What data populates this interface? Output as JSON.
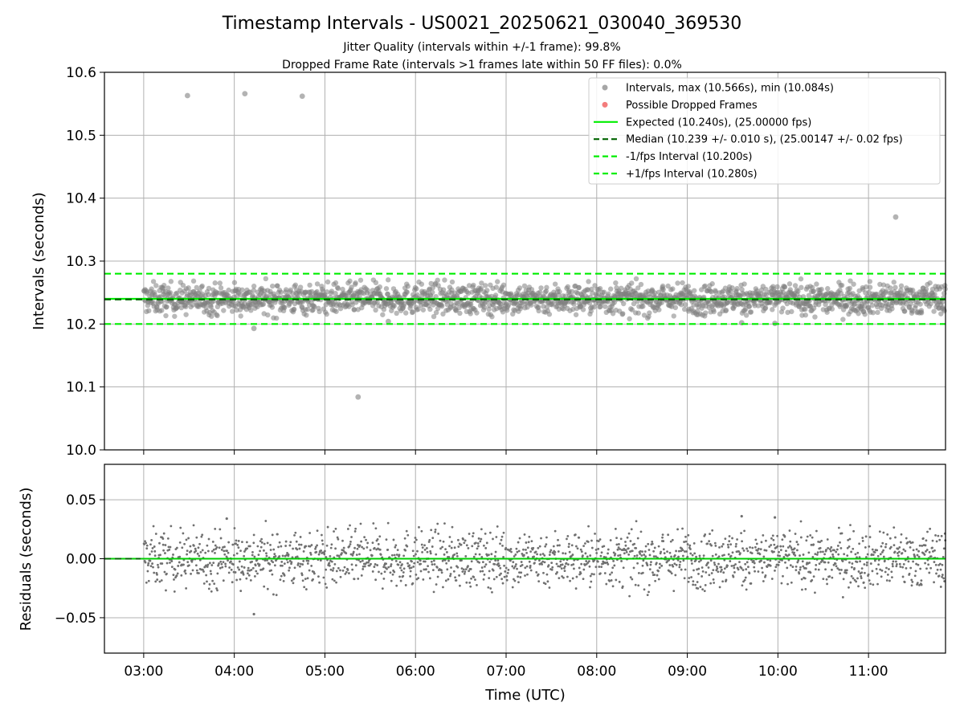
{
  "chart_data": [
    {
      "type": "scatter",
      "title": "Timestamp Intervals - US0021_20250621_030040_369530",
      "subtitle": [
        "Jitter Quality (intervals within +/-1 frame): 99.8%",
        "Dropped Frame Rate (intervals >1 frames late within 50 FF files): 0.0%"
      ],
      "ylabel": "Intervals (seconds)",
      "ylim": [
        10.0,
        10.6
      ],
      "yticks": [
        "10.0",
        "10.1",
        "10.2",
        "10.3",
        "10.4",
        "10.5",
        "10.6"
      ],
      "xlim": [
        "02:34",
        "11:51"
      ],
      "grid": true,
      "legend_position": "top-right",
      "legend": [
        {
          "label": "Intervals, max (10.566s), min (10.084s)",
          "kind": "marker",
          "color": "#808080"
        },
        {
          "label": "Possible Dropped Frames",
          "kind": "marker",
          "color": "#ee4444"
        },
        {
          "label": "Expected (10.240s), (25.00000 fps)",
          "kind": "line",
          "color": "#00ee00"
        },
        {
          "label": "Median (10.239 +/- 0.010 s), (25.00147 +/- 0.02 fps)",
          "kind": "dashed",
          "color": "#006400"
        },
        {
          "label": "-1/fps Interval (10.200s)",
          "kind": "dashed",
          "color": "#00ee00"
        },
        {
          "label": "+1/fps Interval (10.280s)",
          "kind": "dashed",
          "color": "#00ee00"
        }
      ],
      "reference_lines": {
        "expected": 10.24,
        "median": 10.239,
        "minus_1fps": 10.2,
        "plus_1fps": 10.28
      },
      "series": [
        {
          "name": "Intervals, max (10.566s), min (10.084s)",
          "time_range": [
            "03:00",
            "11:51"
          ],
          "interval_mean": 10.24,
          "interval_spread": 0.012,
          "outliers": [
            {
              "x": "03:29",
              "y": 10.563
            },
            {
              "x": "04:07",
              "y": 10.566
            },
            {
              "x": "04:45",
              "y": 10.562
            },
            {
              "x": "11:18",
              "y": 10.37
            },
            {
              "x": "04:13",
              "y": 10.193
            },
            {
              "x": "05:22",
              "y": 10.084
            },
            {
              "x": "05:42",
              "y": 10.204
            },
            {
              "x": "09:36",
              "y": 10.202
            },
            {
              "x": "09:58",
              "y": 10.201
            }
          ]
        }
      ],
      "colors": {
        "scatter": "#808080",
        "expected": "#00ee00",
        "median": "#006400"
      }
    },
    {
      "type": "scatter",
      "xlabel": "Time (UTC)",
      "ylabel": "Residuals (seconds)",
      "ylim": [
        -0.08,
        0.08
      ],
      "yticks": [
        "−0.05",
        "0.00",
        "0.05"
      ],
      "xticks": [
        "03:00",
        "04:00",
        "05:00",
        "06:00",
        "07:00",
        "08:00",
        "09:00",
        "10:00",
        "11:00"
      ],
      "xlim": [
        "02:34",
        "11:51"
      ],
      "grid": true,
      "series": [
        {
          "name": "Residuals",
          "time_range": [
            "03:00",
            "11:51"
          ],
          "residual_spread": 0.012,
          "outliers": [
            {
              "x": "04:13",
              "y": -0.047
            },
            {
              "x": "09:36",
              "y": 0.036
            },
            {
              "x": "09:58",
              "y": 0.035
            },
            {
              "x": "03:55",
              "y": 0.034
            }
          ]
        }
      ],
      "zero_line_color": "#00cc00"
    }
  ]
}
